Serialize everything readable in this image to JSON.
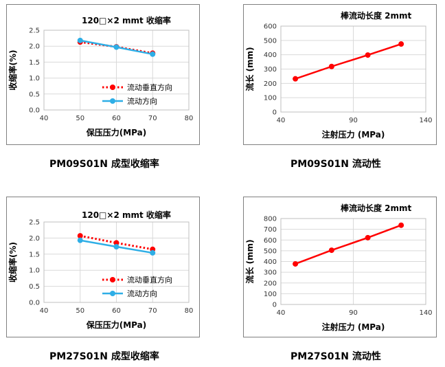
{
  "colors": {
    "perpendicular": "#ff0000",
    "flow": "#2eaee6",
    "lengthLine": "#ff0000",
    "grid": "#d9d9d9",
    "frame": "#7f7f7f"
  },
  "captions": [
    "PM09S01N 成型收缩率",
    "PM09S01N 流动性",
    "PM27S01N 成型收缩率",
    "PM27S01N 流动性"
  ],
  "chart_data": [
    {
      "type": "line",
      "title": "120□×2 mmt 收缩率",
      "xlabel": "保压压力(MPa)",
      "ylabel": "收缩率(%)",
      "xlim": [
        40,
        80
      ],
      "ylim": [
        0,
        2.5
      ],
      "xticks": [
        "40",
        "50",
        "60",
        "70",
        "80"
      ],
      "yticks": [
        "0.0",
        "0.5",
        "1.0",
        "1.5",
        "2.0",
        "2.5"
      ],
      "grid": true,
      "legend": "bottom-right",
      "series": [
        {
          "name": "流动垂直方向",
          "x": [
            50,
            60,
            70
          ],
          "values": [
            2.13,
            1.98,
            1.78
          ]
        },
        {
          "name": "流动方向",
          "x": [
            50,
            60,
            70
          ],
          "values": [
            2.18,
            1.97,
            1.75
          ]
        }
      ]
    },
    {
      "type": "line",
      "title": "棒流动长度 2mmt",
      "xlabel": "注射压力 (MPa)",
      "ylabel": "流长 (mm)",
      "xlim": [
        40,
        140
      ],
      "ylim": [
        0,
        600
      ],
      "xticks": [
        "40",
        "90",
        "140"
      ],
      "yticks": [
        "0",
        "100",
        "200",
        "300",
        "400",
        "500",
        "600"
      ],
      "grid": true,
      "series": [
        {
          "x": [
            50,
            75,
            100,
            123
          ],
          "values": [
            232,
            318,
            398,
            475
          ]
        }
      ]
    },
    {
      "type": "line",
      "title": "120□×2 mmt 收缩率",
      "xlabel": "保压压力(MPa)",
      "ylabel": "收缩率(%)",
      "xlim": [
        40,
        80
      ],
      "ylim": [
        0,
        2.5
      ],
      "xticks": [
        "40",
        "50",
        "60",
        "70",
        "80"
      ],
      "yticks": [
        "0.0",
        "0.5",
        "1.0",
        "1.5",
        "2.0",
        "2.5"
      ],
      "grid": true,
      "legend": "bottom-right",
      "series": [
        {
          "name": "流动垂直方向",
          "x": [
            50,
            60,
            70
          ],
          "values": [
            2.07,
            1.85,
            1.65
          ]
        },
        {
          "name": "流动方向",
          "x": [
            50,
            60,
            70
          ],
          "values": [
            1.93,
            1.73,
            1.54
          ]
        }
      ]
    },
    {
      "type": "line",
      "title": "棒流动长度 2mmt",
      "xlabel": "注射压力 (MPa)",
      "ylabel": "流长 (mm)",
      "xlim": [
        40,
        140
      ],
      "ylim": [
        0,
        800
      ],
      "xticks": [
        "40",
        "90",
        "140"
      ],
      "yticks": [
        "0",
        "100",
        "200",
        "300",
        "400",
        "500",
        "600",
        "700",
        "800"
      ],
      "grid": true,
      "series": [
        {
          "x": [
            50,
            75,
            100,
            123
          ],
          "values": [
            378,
            505,
            622,
            738
          ]
        }
      ]
    }
  ]
}
